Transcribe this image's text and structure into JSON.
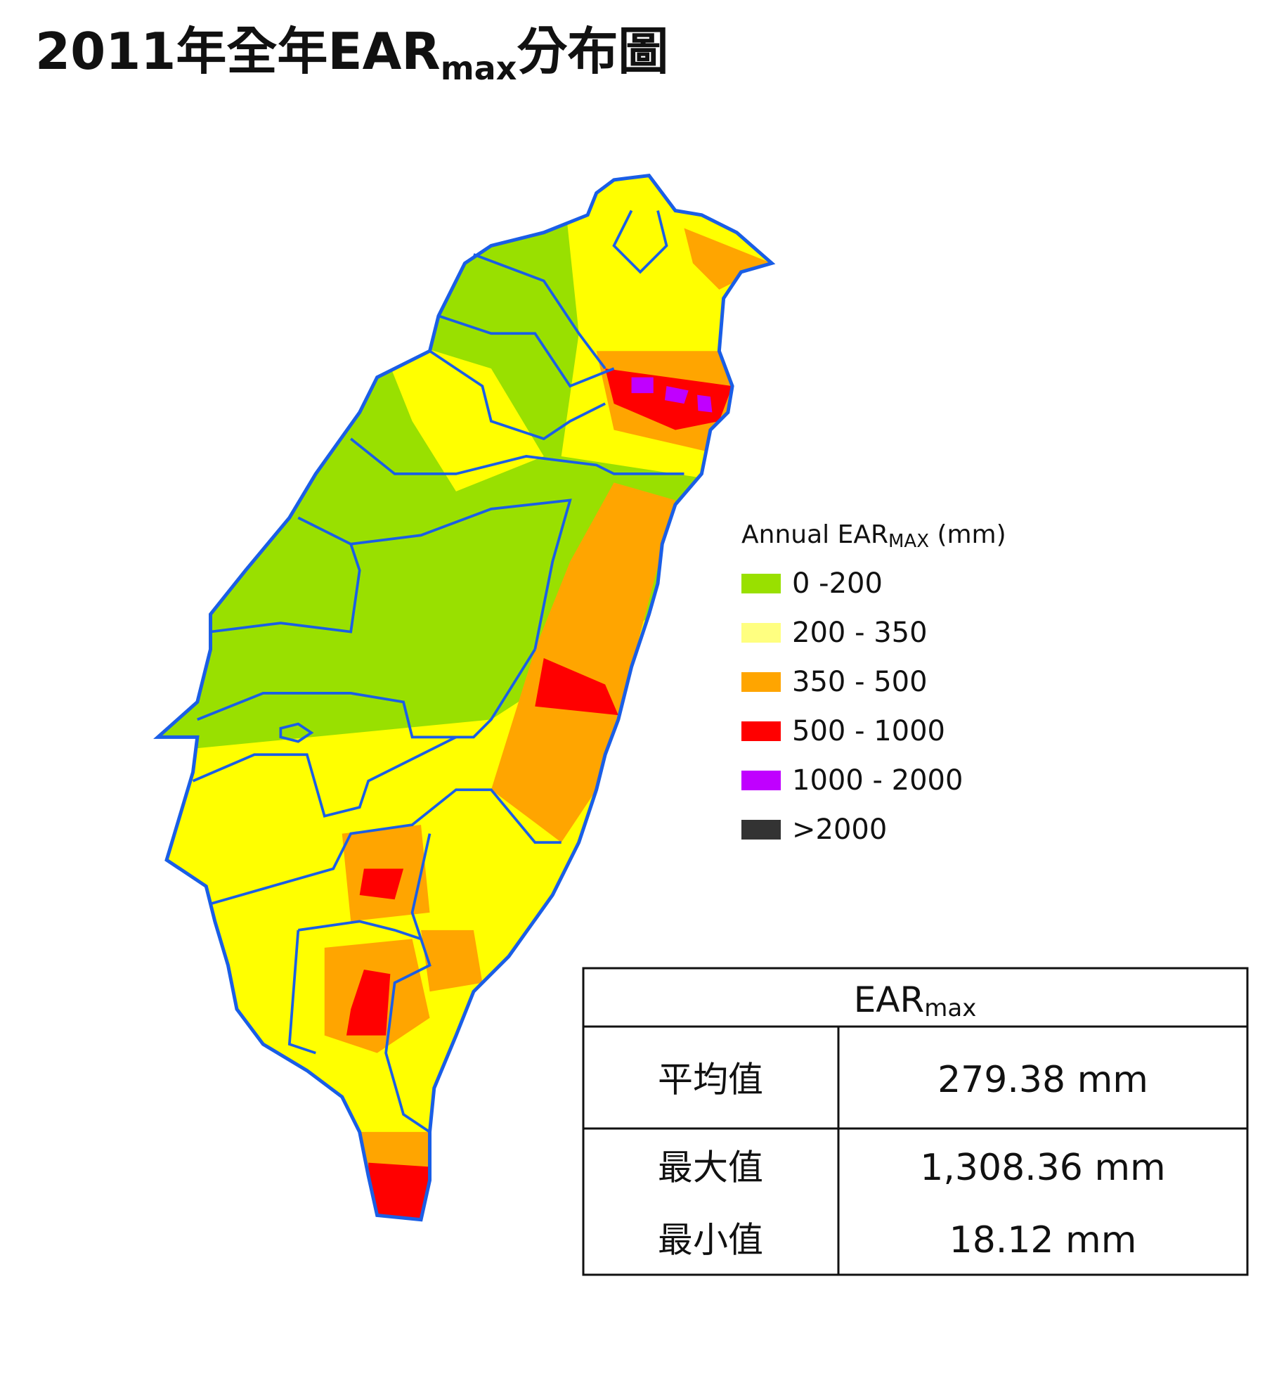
{
  "title": {
    "main": "2011年全年EAR",
    "sub": "max",
    "tail": "分布圖"
  },
  "legend": {
    "title": {
      "main": "Annual EAR",
      "sub": "MAX",
      "tail": " (mm)"
    },
    "items": [
      {
        "label": "0 -200",
        "color": "#99e000"
      },
      {
        "label": "200 - 350",
        "color": "#ffff80"
      },
      {
        "label": "350 - 500",
        "color": "#ffa500"
      },
      {
        "label": "500 - 1000",
        "color": "#ff0000"
      },
      {
        "label": "1000 - 2000",
        "color": "#c000ff"
      },
      {
        "label": ">2000",
        "color": "#333333"
      }
    ]
  },
  "table": {
    "header": {
      "main": "EAR",
      "sub": "max"
    },
    "rows": [
      [
        "平均值",
        "279.38 mm"
      ],
      [
        "最大值",
        "1,308.36 mm"
      ],
      [
        "最小值",
        "18.12 mm"
      ]
    ]
  }
}
